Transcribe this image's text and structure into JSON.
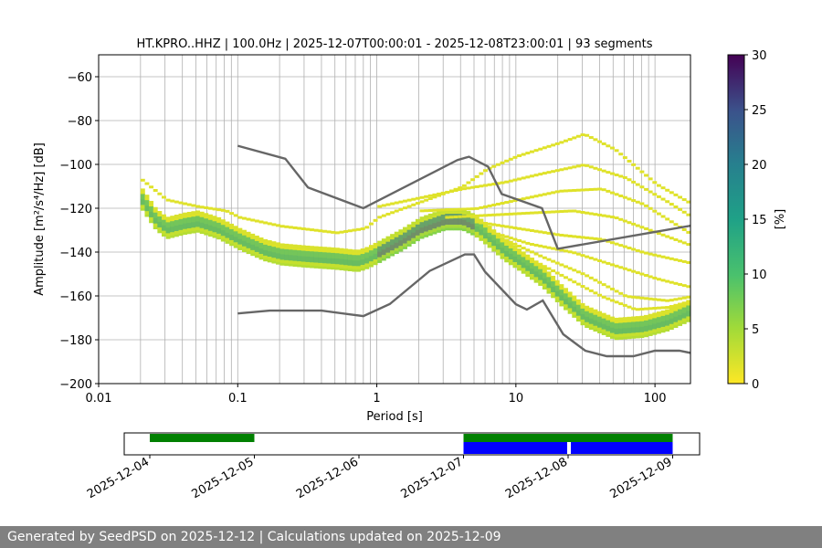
{
  "title": "HT.KPRO..HHZ | 100.0Hz | 2025-12-07T00:00:01 - 2025-12-08T23:00:01 | 93 segments",
  "footer": "Generated by SeedPSD on 2025-12-12 | Calculations updated on 2025-12-09",
  "chart_data": {
    "type": "heatmap",
    "title": "HT.KPRO..HHZ | 100.0Hz | 2025-12-07T00:00:01 - 2025-12-08T23:00:01 | 93 segments",
    "xlabel": "Period [s]",
    "ylabel": "Amplitude [m²/s⁴/Hz] [dB]",
    "xscale": "log",
    "xlim": [
      0.01,
      180
    ],
    "ylim": [
      -200,
      -50
    ],
    "grid": true,
    "x_ticks": [
      {
        "v": 0.01,
        "label": "0.01"
      },
      {
        "v": 0.1,
        "label": "0.1"
      },
      {
        "v": 1,
        "label": "1"
      },
      {
        "v": 10,
        "label": "10"
      },
      {
        "v": 100,
        "label": "100"
      }
    ],
    "y_ticks": [
      {
        "v": -60,
        "label": "−60"
      },
      {
        "v": -80,
        "label": "−80"
      },
      {
        "v": -100,
        "label": "−100"
      },
      {
        "v": -120,
        "label": "−120"
      },
      {
        "v": -140,
        "label": "−140"
      },
      {
        "v": -160,
        "label": "−160"
      },
      {
        "v": -180,
        "label": "−180"
      },
      {
        "v": -200,
        "label": "−200"
      }
    ],
    "colorbar": {
      "label": "[%]",
      "min": 0,
      "max": 30,
      "colormap": "viridis-reversed",
      "ticks": [
        {
          "v": 0,
          "label": "0"
        },
        {
          "v": 5,
          "label": "5"
        },
        {
          "v": 10,
          "label": "10"
        },
        {
          "v": 15,
          "label": "15"
        },
        {
          "v": 20,
          "label": "20"
        },
        {
          "v": 25,
          "label": "25"
        },
        {
          "v": 30,
          "label": "30"
        }
      ]
    },
    "mode_curve": [
      [
        0.02,
        -115
      ],
      [
        0.025,
        -124
      ],
      [
        0.03,
        -128
      ],
      [
        0.04,
        -126
      ],
      [
        0.05,
        -125
      ],
      [
        0.07,
        -128
      ],
      [
        0.1,
        -133
      ],
      [
        0.15,
        -138
      ],
      [
        0.2,
        -140
      ],
      [
        0.3,
        -141
      ],
      [
        0.5,
        -142
      ],
      [
        0.7,
        -143
      ],
      [
        0.8,
        -142
      ],
      [
        1.0,
        -139
      ],
      [
        1.5,
        -133
      ],
      [
        2.0,
        -128
      ],
      [
        3.0,
        -124
      ],
      [
        4.0,
        -124
      ],
      [
        5.0,
        -127
      ],
      [
        6.0,
        -131
      ],
      [
        8.0,
        -138
      ],
      [
        10,
        -142
      ],
      [
        15,
        -150
      ],
      [
        20,
        -158
      ],
      [
        30,
        -168
      ],
      [
        50,
        -174
      ],
      [
        80,
        -173
      ],
      [
        120,
        -170
      ],
      [
        180,
        -165
      ]
    ],
    "spread_curves": [
      [
        [
          0.02,
          -107
        ],
        [
          0.03,
          -116
        ],
        [
          0.05,
          -119
        ],
        [
          0.08,
          -121
        ],
        [
          0.1,
          -124
        ],
        [
          0.2,
          -128
        ],
        [
          0.5,
          -131
        ],
        [
          0.8,
          -129
        ],
        [
          1.0,
          -124
        ],
        [
          2.0,
          -117
        ],
        [
          4.0,
          -110
        ],
        [
          6.0,
          -102
        ],
        [
          10,
          -96
        ],
        [
          20,
          -90
        ],
        [
          30,
          -86
        ],
        [
          50,
          -93
        ],
        [
          100,
          -109
        ],
        [
          180,
          -118
        ]
      ],
      [
        [
          1.0,
          -119
        ],
        [
          2.0,
          -115
        ],
        [
          4.0,
          -111
        ],
        [
          8.0,
          -108
        ],
        [
          15,
          -104
        ],
        [
          30,
          -100
        ],
        [
          60,
          -106
        ],
        [
          120,
          -117
        ],
        [
          180,
          -124
        ]
      ],
      [
        [
          2.0,
          -121
        ],
        [
          5.0,
          -120
        ],
        [
          10,
          -116
        ],
        [
          20,
          -112
        ],
        [
          40,
          -111
        ],
        [
          80,
          -118
        ],
        [
          180,
          -132
        ]
      ],
      [
        [
          3.0,
          -124
        ],
        [
          6.0,
          -123
        ],
        [
          12,
          -122
        ],
        [
          25,
          -121
        ],
        [
          50,
          -124
        ],
        [
          100,
          -131
        ],
        [
          180,
          -137
        ]
      ],
      [
        [
          5.0,
          -126
        ],
        [
          10,
          -129
        ],
        [
          20,
          -132
        ],
        [
          40,
          -134
        ],
        [
          80,
          -140
        ],
        [
          180,
          -145
        ]
      ],
      [
        [
          6.0,
          -130
        ],
        [
          12,
          -136
        ],
        [
          25,
          -140
        ],
        [
          50,
          -146
        ],
        [
          100,
          -152
        ],
        [
          180,
          -156
        ]
      ],
      [
        [
          8.0,
          -134
        ],
        [
          15,
          -142
        ],
        [
          30,
          -150
        ],
        [
          60,
          -160
        ],
        [
          120,
          -162
        ],
        [
          180,
          -160
        ]
      ],
      [
        [
          10,
          -140
        ],
        [
          20,
          -150
        ],
        [
          40,
          -160
        ],
        [
          70,
          -166
        ],
        [
          120,
          -165
        ],
        [
          180,
          -162
        ]
      ]
    ],
    "low_noise_model": [
      [
        0.1,
        -168
      ],
      [
        0.17,
        -166.7
      ],
      [
        0.4,
        -166.7
      ],
      [
        0.8,
        -169.2
      ],
      [
        1.24,
        -163.7
      ],
      [
        2.4,
        -148.6
      ],
      [
        4.3,
        -141.1
      ],
      [
        5.0,
        -141.1
      ],
      [
        6.0,
        -149.0
      ],
      [
        10,
        -163.8
      ],
      [
        12,
        -166.2
      ],
      [
        15.6,
        -162.1
      ],
      [
        21.9,
        -177.5
      ],
      [
        31.6,
        -185.0
      ],
      [
        45,
        -187.5
      ],
      [
        70,
        -187.5
      ],
      [
        100,
        -185.0
      ],
      [
        150,
        -185.0
      ],
      [
        180,
        -186.0
      ]
    ],
    "high_noise_model": [
      [
        0.1,
        -91.5
      ],
      [
        0.22,
        -97.4
      ],
      [
        0.32,
        -110.5
      ],
      [
        0.8,
        -120.0
      ],
      [
        3.8,
        -98.0
      ],
      [
        4.6,
        -96.5
      ],
      [
        6.3,
        -101.0
      ],
      [
        7.9,
        -113.5
      ],
      [
        15.4,
        -120.0
      ],
      [
        20,
        -138.5
      ],
      [
        180,
        -128.0
      ]
    ]
  },
  "availability_chart": {
    "x_ticks": [
      "2025-12-04",
      "2025-12-05",
      "2025-12-06",
      "2025-12-07",
      "2025-12-08",
      "2025-12-09"
    ],
    "green_bars": [
      {
        "start": "2025-12-04",
        "end": "2025-12-05"
      },
      {
        "start": "2025-12-07",
        "end": "2025-12-09"
      }
    ],
    "blue_bars": [
      {
        "start": "2025-12-07",
        "end": "2025-12-08"
      },
      {
        "start": "2025-12-08",
        "end": "2025-12-09"
      }
    ]
  }
}
